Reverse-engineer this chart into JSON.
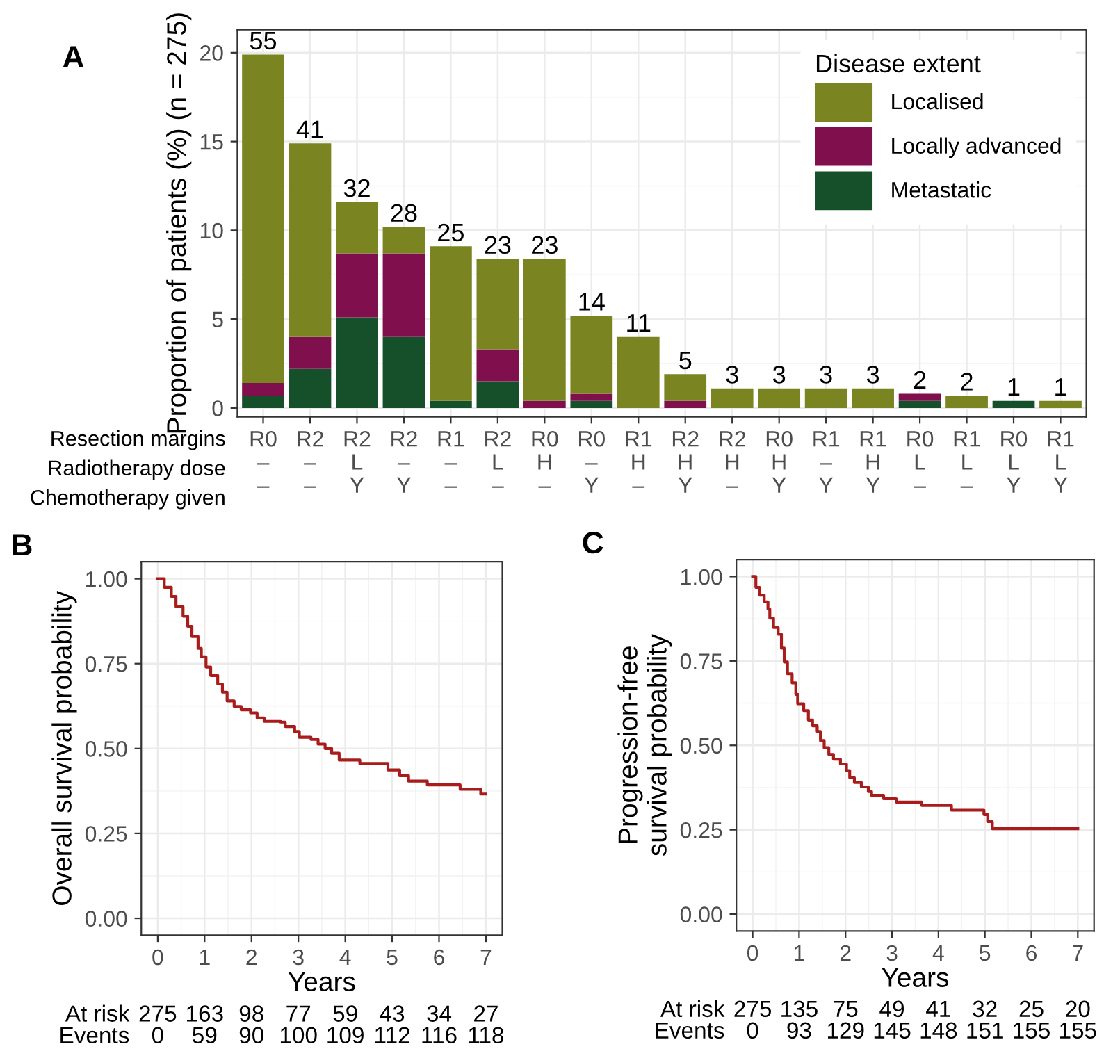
{
  "chart_data": [
    {
      "type": "bar",
      "title": "A",
      "ylabel": "Proportion of patients (%) (n = 275)",
      "legend_title": "Disease extent",
      "legend": "top right",
      "stacked": true,
      "grid": true,
      "categories": [
        "R0\n–\n–",
        "R2\n–\n–",
        "R2\nL\nY",
        "R2\n–\nY",
        "R1\n–\n–",
        "R2\nL\n–",
        "R0\nH\n–",
        "R0\n–\nY",
        "R1\nH\n–",
        "R2\nH\nY",
        "R2\nH\n–",
        "R0\nH\nY",
        "R1\n–\nY",
        "R1\nH\nY",
        "R0\nL\n–",
        "R1\nL\n–",
        "R0\nL\nY",
        "R1\nL\nY"
      ],
      "series": [
        {
          "name": "Metastatic",
          "color": "#16502a",
          "values": [
            0.7,
            2.2,
            5.1,
            4.0,
            0.4,
            1.5,
            0,
            0.4,
            0,
            0,
            0,
            0,
            0,
            0,
            0.4,
            0,
            0.4,
            0
          ]
        },
        {
          "name": "Locally advanced",
          "color": "#7f0f4d",
          "values": [
            0.7,
            1.8,
            3.6,
            4.7,
            0,
            1.8,
            0.4,
            0.4,
            0,
            0.4,
            0,
            0,
            0,
            0,
            0.4,
            0,
            0,
            0
          ]
        },
        {
          "name": "Localised",
          "color": "#7a8420",
          "values": [
            18.5,
            10.9,
            2.9,
            1.5,
            8.7,
            5.1,
            8.0,
            4.4,
            4.0,
            1.5,
            1.1,
            1.1,
            1.1,
            1.1,
            0,
            0.7,
            0,
            0.4
          ]
        }
      ],
      "ylim": [
        -0.5,
        21.3
      ],
      "yticks": [
        0,
        5,
        10,
        15,
        20
      ],
      "annotations": [
        "Resection margins",
        "Radiotherapy dose",
        "Chemotherapy given",
        {
          "text": "55",
          "x": "R0\n–\n–",
          "y": 19.9
        },
        {
          "text": "41",
          "x": "R2\n–\n–",
          "y": 14.9
        },
        {
          "text": "32",
          "x": "R2\nL\nY",
          "y": 11.6
        },
        {
          "text": "28",
          "x": "R2\n–\nY",
          "y": 10.2
        },
        {
          "text": "25",
          "x": "R1\n–\n–",
          "y": 9.1
        },
        {
          "text": "23",
          "x": "R2\nL\n–",
          "y": 8.4
        },
        {
          "text": "23",
          "x": "R0\nH\n–",
          "y": 8.4
        },
        {
          "text": "14",
          "x": "R0\n–\nY",
          "y": 5.2
        },
        {
          "text": "11",
          "x": "R1\nH\n–",
          "y": 4.0
        },
        {
          "text": "5",
          "x": "R2\nH\nY",
          "y": 1.9
        },
        {
          "text": "3",
          "x": "R2\nH\n–",
          "y": 1.1
        },
        {
          "text": "3",
          "x": "R0\nH\nY",
          "y": 1.1
        },
        {
          "text": "3",
          "x": "R1\n–\nY",
          "y": 1.1
        },
        {
          "text": "3",
          "x": "R1\nH\nY",
          "y": 1.1
        },
        {
          "text": "2",
          "x": "R0\nL\n–",
          "y": 0.8
        },
        {
          "text": "2",
          "x": "R1\nL\n–",
          "y": 0.7
        },
        {
          "text": "1",
          "x": "R0\nL\nY",
          "y": 0.4
        },
        {
          "text": "1",
          "x": "R1\nL\nY",
          "y": 0.4
        }
      ]
    },
    {
      "type": "step",
      "title": "B",
      "ylabel": "Overall survival probability",
      "xlabel": "Years",
      "grid": true,
      "series": [
        {
          "color": "#a81c1c",
          "x": [
            0,
            0.14,
            0.29,
            0.39,
            0.54,
            0.64,
            0.73,
            0.86,
            0.93,
            1.03,
            1.13,
            1.28,
            1.38,
            1.48,
            1.63,
            1.78,
            1.98,
            2.12,
            2.27,
            2.62,
            2.72,
            2.92,
            3.02,
            3.27,
            3.42,
            3.57,
            3.71,
            3.87,
            4.31,
            4.91,
            5.16,
            5.35,
            5.75,
            6.45,
            6.89,
            7.0
          ],
          "values": [
            1.0,
            0.975,
            0.948,
            0.918,
            0.89,
            0.86,
            0.83,
            0.795,
            0.77,
            0.74,
            0.715,
            0.69,
            0.666,
            0.64,
            0.624,
            0.614,
            0.605,
            0.59,
            0.58,
            0.578,
            0.565,
            0.55,
            0.533,
            0.527,
            0.513,
            0.5,
            0.486,
            0.466,
            0.456,
            0.437,
            0.42,
            0.404,
            0.393,
            0.38,
            0.366,
            0.366
          ]
        }
      ],
      "xlim": [
        -0.35,
        7.35
      ],
      "xticks": [
        0,
        1,
        2,
        3,
        4,
        5,
        6,
        7
      ],
      "ylim": [
        -0.05,
        1.05
      ],
      "yticks": [
        {
          "value": 0,
          "label": "0.00"
        },
        {
          "value": 0.25,
          "label": "0.25"
        },
        {
          "value": 0.5,
          "label": "0.50"
        },
        {
          "value": 0.75,
          "label": "0.75"
        },
        {
          "value": 1,
          "label": "1.00"
        }
      ],
      "annotations": [
        "At risk",
        "275",
        "163",
        "98",
        "77",
        "59",
        "43",
        "34",
        "27",
        "Events",
        "0",
        "59",
        "90",
        "100",
        "109",
        "112",
        "116",
        "118"
      ]
    },
    {
      "type": "step",
      "title": "C",
      "ylabel": "Progression-free\nsurvival probability",
      "xlabel": "Years",
      "grid": true,
      "series": [
        {
          "color": "#a81c1c",
          "x": [
            0,
            0.07,
            0.15,
            0.25,
            0.33,
            0.37,
            0.45,
            0.55,
            0.62,
            0.68,
            0.75,
            0.85,
            0.93,
            0.97,
            1.1,
            1.2,
            1.29,
            1.39,
            1.46,
            1.54,
            1.64,
            1.74,
            1.89,
            2.02,
            2.09,
            2.19,
            2.34,
            2.49,
            2.56,
            2.82,
            3.09,
            3.64,
            4.28,
            4.98,
            5.06,
            5.16,
            7.0
          ],
          "values": [
            1.0,
            0.968,
            0.945,
            0.925,
            0.904,
            0.877,
            0.849,
            0.829,
            0.788,
            0.747,
            0.712,
            0.685,
            0.651,
            0.623,
            0.603,
            0.575,
            0.558,
            0.541,
            0.514,
            0.493,
            0.473,
            0.459,
            0.445,
            0.425,
            0.404,
            0.39,
            0.377,
            0.363,
            0.352,
            0.342,
            0.332,
            0.322,
            0.308,
            0.295,
            0.274,
            0.253,
            0.253
          ]
        }
      ],
      "xlim": [
        -0.35,
        7.35
      ],
      "xticks": [
        0,
        1,
        2,
        3,
        4,
        5,
        6,
        7
      ],
      "ylim": [
        -0.05,
        1.05
      ],
      "yticks": [
        {
          "value": 0,
          "label": "0.00"
        },
        {
          "value": 0.25,
          "label": "0.25"
        },
        {
          "value": 0.5,
          "label": "0.50"
        },
        {
          "value": 0.75,
          "label": "0.75"
        },
        {
          "value": 1,
          "label": "1.00"
        }
      ],
      "annotations": [
        "At risk",
        "275",
        "135",
        "75",
        "49",
        "41",
        "32",
        "25",
        "20",
        "Events",
        "0",
        "93",
        "129",
        "145",
        "148",
        "151",
        "155",
        "155"
      ]
    }
  ]
}
